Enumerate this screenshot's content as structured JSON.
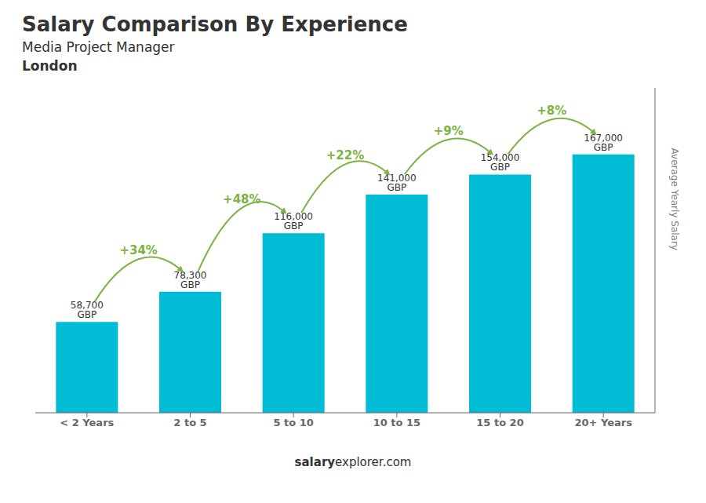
{
  "chart_data": {
    "type": "bar",
    "title": "Salary Comparison By Experience",
    "subtitle": "Media Project Manager",
    "annotations": [
      "London"
    ],
    "footer": [
      "salary",
      "explorer.com"
    ],
    "ylabel": "Average Yearly Salary",
    "categories": [
      "< 2 Years",
      "2 to 5",
      "5 to 10",
      "10 to 15",
      "15 to 20",
      "20+ Years"
    ],
    "values": [
      58700,
      78300,
      116000,
      141000,
      154000,
      167000
    ],
    "value_labels": [
      "58,700 GBP",
      "78,300 GBP",
      "116,000 GBP",
      "141,000 GBP",
      "154,000 GBP",
      "167,000 GBP"
    ],
    "data_labels": true,
    "change_labels": [
      "+34%",
      "+48%",
      "+22%",
      "+9%",
      "+8%"
    ],
    "color": "#00bcd4",
    "ylim": [
      0,
      210000
    ],
    "tick_labels": "x",
    "grid": false
  }
}
